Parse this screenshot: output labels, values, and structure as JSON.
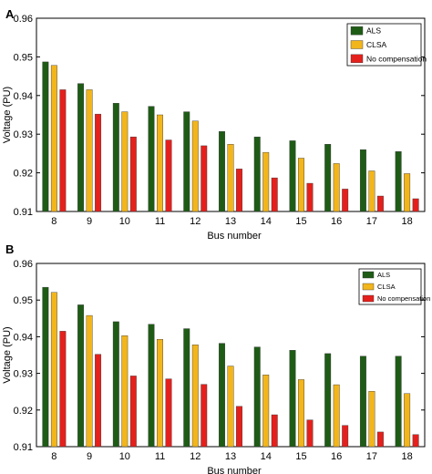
{
  "chart_data": [
    {
      "panel": "A",
      "type": "bar",
      "xlabel": "Bus number",
      "ylabel": "Voltage (PU)",
      "ylim": [
        0.91,
        0.96
      ],
      "yticks": [
        "0.91",
        "0.92",
        "0.93",
        "0.94",
        "0.95",
        "0.96"
      ],
      "categories": [
        "8",
        "9",
        "10",
        "11",
        "12",
        "13",
        "14",
        "15",
        "16",
        "17",
        "18"
      ],
      "grid": false,
      "legend_position": "top-right",
      "series": [
        {
          "name": "ALS",
          "color": "#1e5c16",
          "values": [
            0.9487,
            0.9431,
            0.938,
            0.9372,
            0.9358,
            0.9307,
            0.9293,
            0.9283,
            0.9274,
            0.926,
            0.9255
          ]
        },
        {
          "name": "CLSA",
          "color": "#f2b51b",
          "values": [
            0.9478,
            0.9415,
            0.9358,
            0.935,
            0.9334,
            0.9274,
            0.9253,
            0.9238,
            0.9224,
            0.9205,
            0.9198
          ]
        },
        {
          "name": "No compensation",
          "color": "#e5201c",
          "values": [
            0.9415,
            0.9352,
            0.9293,
            0.9285,
            0.927,
            0.921,
            0.9187,
            0.9173,
            0.9158,
            0.914,
            0.9133
          ]
        }
      ]
    },
    {
      "panel": "B",
      "type": "bar",
      "xlabel": "Bus number",
      "ylabel": "Voltage (PU)",
      "ylim": [
        0.91,
        0.96
      ],
      "yticks": [
        "0.91",
        "0.92",
        "0.93",
        "0.94",
        "0.95",
        "0.96"
      ],
      "categories": [
        "8",
        "9",
        "10",
        "11",
        "12",
        "13",
        "14",
        "15",
        "16",
        "17",
        "18"
      ],
      "grid": false,
      "legend_position": "top-right",
      "series": [
        {
          "name": "ALS",
          "color": "#1e5c16",
          "values": [
            0.9535,
            0.9487,
            0.9441,
            0.9434,
            0.9422,
            0.9382,
            0.9372,
            0.9363,
            0.9354,
            0.9347,
            0.9347
          ]
        },
        {
          "name": "CLSA",
          "color": "#f2b51b",
          "values": [
            0.9521,
            0.9458,
            0.9403,
            0.9393,
            0.9378,
            0.932,
            0.9296,
            0.9283,
            0.9269,
            0.9251,
            0.9245
          ]
        },
        {
          "name": "No compensation",
          "color": "#e5201c",
          "values": [
            0.9415,
            0.9352,
            0.9293,
            0.9285,
            0.927,
            0.921,
            0.9187,
            0.9173,
            0.9158,
            0.914,
            0.9133
          ]
        }
      ]
    }
  ]
}
